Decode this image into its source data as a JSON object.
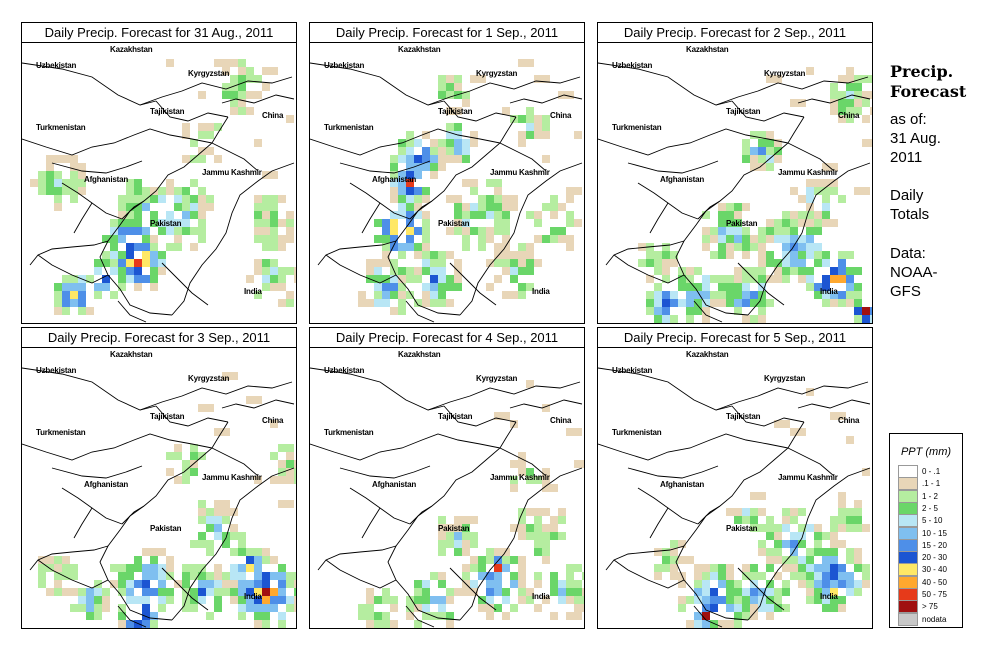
{
  "panels": [
    {
      "title": "Daily Precip. Forecast for  31 Aug., 2011"
    },
    {
      "title": "Daily Precip. Forecast for  1 Sep., 2011"
    },
    {
      "title": "Daily Precip. Forecast for  2 Sep., 2011"
    },
    {
      "title": "Daily Precip. Forecast for  3 Sep., 2011"
    },
    {
      "title": "Daily Precip. Forecast for  4 Sep., 2011"
    },
    {
      "title": "Daily Precip. Forecast for  5 Sep., 2011"
    }
  ],
  "countries": {
    "kazakhstan": "Kazakhstan",
    "uzbekistan": "Uzbekistan",
    "kyrgyzstan": "Kyrgyzstan",
    "tajikistan": "Tajikistan",
    "china": "China",
    "turkmenistan": "Turkmenistan",
    "afghanistan": "Afghanistan",
    "jammu_kashmir": "Jammu Kashmir",
    "pakistan": "Pakistan",
    "india": "India"
  },
  "side_panel": {
    "title_line1": "Precip.",
    "title_line2": "Forecast",
    "asof_line1": "as of:",
    "asof_line2": "31 Aug.",
    "asof_line3": "2011",
    "daily_line1": "Daily",
    "daily_line2": "Totals",
    "data_line1": "Data:",
    "data_line2": "NOAA-",
    "data_line3": "GFS"
  },
  "legend": {
    "title": "PPT (mm)",
    "items": [
      {
        "label": "0 - .1",
        "color": "#ffffff"
      },
      {
        "label": ".1 - 1",
        "color": "#e8d6b8"
      },
      {
        "label": "1 - 2",
        "color": "#b5eda0"
      },
      {
        "label": "2 - 5",
        "color": "#6ad669"
      },
      {
        "label": "5 - 10",
        "color": "#b8e6f5"
      },
      {
        "label": "10 - 15",
        "color": "#7fbff0"
      },
      {
        "label": "15 - 20",
        "color": "#4e8fe8"
      },
      {
        "label": "20 - 30",
        "color": "#1c55d2"
      },
      {
        "label": "30 - 40",
        "color": "#ffe866"
      },
      {
        "label": "40 - 50",
        "color": "#ffa82e"
      },
      {
        "label": "50 - 75",
        "color": "#e63a1a"
      },
      {
        "label": "> 75",
        "color": "#a01010"
      },
      {
        "label": "nodata",
        "color": "#c8c8c8"
      }
    ]
  }
}
